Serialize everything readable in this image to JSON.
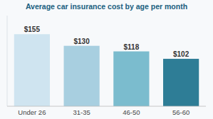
{
  "chart_data": {
    "type": "bar",
    "title": "Average car insurance cost by age per month",
    "categories": [
      "Under 26",
      "31-35",
      "46-50",
      "56-60"
    ],
    "values": [
      155,
      130,
      118,
      102
    ],
    "value_labels": [
      "$155",
      "$130",
      "$118",
      "$102"
    ],
    "colors": [
      "#cfe4f0",
      "#a8cfe0",
      "#7bbcce",
      "#2e7d96"
    ],
    "ylim": [
      0,
      195
    ],
    "data_labels": true,
    "tick_labels": "x",
    "grid": false
  }
}
